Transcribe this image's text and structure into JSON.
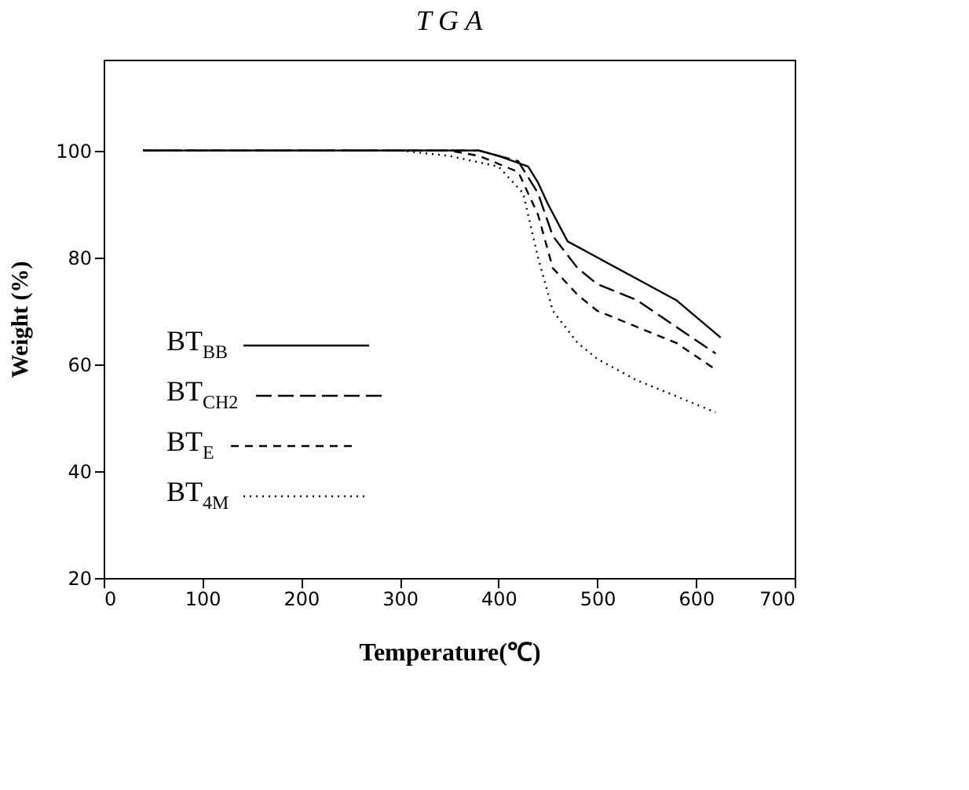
{
  "chart_data": {
    "type": "line",
    "title": "T G A",
    "xlabel": "Temperature(℃)",
    "ylabel": "Weight (%)",
    "xlim": [
      0,
      700
    ],
    "xticks": [
      0,
      100,
      200,
      300,
      400,
      500,
      600,
      700
    ],
    "ylim": [
      20,
      117
    ],
    "yticks": [
      20,
      40,
      60,
      80,
      100
    ],
    "grid": false,
    "legend": "bottom left",
    "marker": "none",
    "series": [
      {
        "name": "BT$_{BB}$",
        "color": "#000000",
        "line_style": "solid",
        "x": [
          40,
          300,
          380,
          400,
          430,
          440,
          450,
          470,
          500,
          540,
          580,
          625
        ],
        "values": [
          100,
          100,
          100,
          99,
          97,
          94,
          90,
          83,
          80,
          76,
          72,
          65
        ]
      },
      {
        "name": "BT$_{CH2}$",
        "color": "#000000",
        "line_style": "dashed",
        "x": [
          40,
          300,
          380,
          420,
          440,
          455,
          480,
          500,
          540,
          580,
          620
        ],
        "values": [
          100,
          100,
          100,
          98,
          92,
          84,
          78,
          75,
          72,
          67,
          62
        ]
      },
      {
        "name": "BT$_{E}$",
        "color": "#000000",
        "line_style": "dashed",
        "x": [
          40,
          300,
          350,
          380,
          420,
          440,
          455,
          480,
          500,
          540,
          580,
          620
        ],
        "values": [
          100,
          100,
          100,
          99,
          96,
          88,
          78,
          73,
          70,
          67,
          64,
          59
        ]
      },
      {
        "name": "BT$_{4M}$",
        "color": "#000000",
        "line_style": "dotted",
        "x": [
          40,
          300,
          350,
          400,
          425,
          440,
          455,
          480,
          500,
          540,
          580,
          620
        ],
        "values": [
          100,
          100,
          99,
          97,
          92,
          80,
          70,
          64,
          61,
          57,
          54,
          51
        ]
      }
    ]
  }
}
